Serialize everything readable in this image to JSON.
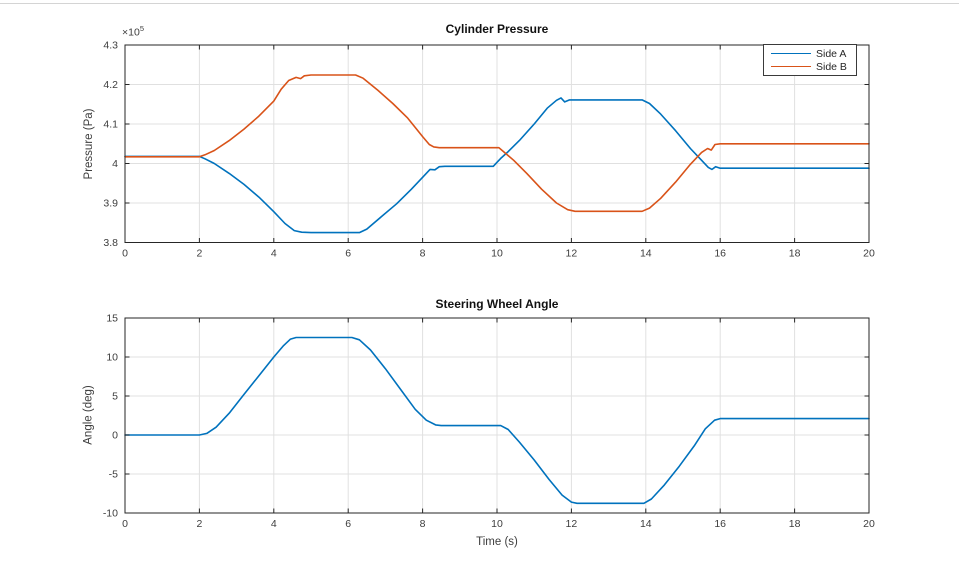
{
  "window": {
    "background": "#ffffff",
    "top_border_color": "#d4d4d4"
  },
  "styles": {
    "axis_color": "#262626",
    "grid_color": "#e0e0e0",
    "tick_label_color": "#3d3d3d",
    "title_color": "#111111"
  },
  "chart_data": [
    {
      "type": "line",
      "title": "Cylinder Pressure",
      "ylabel": "Pressure (Pa)",
      "y_multiplier": {
        "base": "×10",
        "exp": "5"
      },
      "xlim": [
        0,
        20
      ],
      "ylim": [
        3.8,
        4.3
      ],
      "grid": true,
      "legend": {
        "position": "northeast",
        "entries": [
          {
            "label": "Side A",
            "color": "#0072BD"
          },
          {
            "label": "Side B",
            "color": "#D95319"
          }
        ]
      },
      "xticks": [
        0,
        2,
        4,
        6,
        8,
        10,
        12,
        14,
        16,
        18,
        20
      ],
      "xtick_labels": [
        "0",
        "2",
        "4",
        "6",
        "8",
        "10",
        "12",
        "14",
        "16",
        "18",
        "20"
      ],
      "yticks": [
        3.8,
        3.9,
        4,
        4.1,
        4.2,
        4.3
      ],
      "ytick_labels": [
        "3.8",
        "3.9",
        "4",
        "4.1",
        "4.2",
        "4.3"
      ],
      "series": [
        {
          "name": "Side A",
          "color": "#0072BD",
          "points": [
            [
              0,
              4.018
            ],
            [
              2.0,
              4.018
            ],
            [
              2.15,
              4.012
            ],
            [
              2.4,
              4.0
            ],
            [
              2.8,
              3.975
            ],
            [
              3.2,
              3.947
            ],
            [
              3.6,
              3.915
            ],
            [
              4.0,
              3.878
            ],
            [
              4.3,
              3.848
            ],
            [
              4.55,
              3.83
            ],
            [
              4.75,
              3.826
            ],
            [
              5.0,
              3.825
            ],
            [
              6.3,
              3.825
            ],
            [
              6.5,
              3.834
            ],
            [
              6.9,
              3.866
            ],
            [
              7.3,
              3.898
            ],
            [
              7.7,
              3.935
            ],
            [
              8.05,
              3.97
            ],
            [
              8.2,
              3.985
            ],
            [
              8.33,
              3.984
            ],
            [
              8.45,
              3.992
            ],
            [
              8.6,
              3.993
            ],
            [
              9.9,
              3.993
            ],
            [
              10.0,
              4.003
            ],
            [
              10.1,
              4.013
            ],
            [
              10.3,
              4.03
            ],
            [
              10.6,
              4.058
            ],
            [
              11.0,
              4.1
            ],
            [
              11.35,
              4.14
            ],
            [
              11.6,
              4.16
            ],
            [
              11.72,
              4.166
            ],
            [
              11.82,
              4.156
            ],
            [
              11.95,
              4.161
            ],
            [
              13.9,
              4.161
            ],
            [
              14.1,
              4.152
            ],
            [
              14.4,
              4.125
            ],
            [
              14.8,
              4.083
            ],
            [
              15.2,
              4.038
            ],
            [
              15.5,
              4.008
            ],
            [
              15.68,
              3.99
            ],
            [
              15.78,
              3.985
            ],
            [
              15.88,
              3.992
            ],
            [
              16.0,
              3.988
            ],
            [
              20,
              3.988
            ]
          ]
        },
        {
          "name": "Side B",
          "color": "#D95319",
          "points": [
            [
              0,
              4.017
            ],
            [
              2.0,
              4.017
            ],
            [
              2.15,
              4.022
            ],
            [
              2.4,
              4.033
            ],
            [
              2.8,
              4.058
            ],
            [
              3.2,
              4.087
            ],
            [
              3.6,
              4.12
            ],
            [
              4.0,
              4.158
            ],
            [
              4.2,
              4.188
            ],
            [
              4.4,
              4.21
            ],
            [
              4.6,
              4.218
            ],
            [
              4.72,
              4.215
            ],
            [
              4.82,
              4.222
            ],
            [
              5.0,
              4.224
            ],
            [
              6.2,
              4.224
            ],
            [
              6.4,
              4.216
            ],
            [
              6.8,
              4.185
            ],
            [
              7.2,
              4.152
            ],
            [
              7.6,
              4.115
            ],
            [
              8.0,
              4.068
            ],
            [
              8.18,
              4.048
            ],
            [
              8.3,
              4.042
            ],
            [
              8.45,
              4.04
            ],
            [
              10.05,
              4.04
            ],
            [
              10.2,
              4.028
            ],
            [
              10.45,
              4.008
            ],
            [
              10.8,
              3.975
            ],
            [
              11.2,
              3.935
            ],
            [
              11.6,
              3.9
            ],
            [
              11.9,
              3.883
            ],
            [
              12.1,
              3.879
            ],
            [
              13.9,
              3.879
            ],
            [
              14.1,
              3.887
            ],
            [
              14.4,
              3.912
            ],
            [
              14.8,
              3.953
            ],
            [
              15.2,
              3.998
            ],
            [
              15.5,
              4.028
            ],
            [
              15.66,
              4.038
            ],
            [
              15.76,
              4.034
            ],
            [
              15.86,
              4.048
            ],
            [
              16.0,
              4.05
            ],
            [
              20,
              4.05
            ]
          ]
        }
      ]
    },
    {
      "type": "line",
      "title": "Steering Wheel Angle",
      "xlabel": "Time (s)",
      "ylabel": "Angle (deg)",
      "xlim": [
        0,
        20
      ],
      "ylim": [
        -10,
        15
      ],
      "grid": true,
      "xticks": [
        0,
        2,
        4,
        6,
        8,
        10,
        12,
        14,
        16,
        18,
        20
      ],
      "xtick_labels": [
        "0",
        "2",
        "4",
        "6",
        "8",
        "10",
        "12",
        "14",
        "16",
        "18",
        "20"
      ],
      "yticks": [
        -10,
        -5,
        0,
        5,
        10,
        15
      ],
      "ytick_labels": [
        "-10",
        "-5",
        "0",
        "5",
        "10",
        "15"
      ],
      "series": [
        {
          "name": "Angle",
          "color": "#0072BD",
          "points": [
            [
              0,
              0
            ],
            [
              2,
              0
            ],
            [
              2.2,
              0.2
            ],
            [
              2.45,
              1.0
            ],
            [
              2.8,
              2.8
            ],
            [
              3.2,
              5.2
            ],
            [
              3.6,
              7.6
            ],
            [
              4.0,
              10.0
            ],
            [
              4.25,
              11.4
            ],
            [
              4.45,
              12.3
            ],
            [
              4.6,
              12.5
            ],
            [
              6.1,
              12.5
            ],
            [
              6.3,
              12.2
            ],
            [
              6.6,
              10.9
            ],
            [
              7.0,
              8.5
            ],
            [
              7.4,
              5.9
            ],
            [
              7.8,
              3.3
            ],
            [
              8.1,
              1.9
            ],
            [
              8.35,
              1.3
            ],
            [
              8.5,
              1.2
            ],
            [
              10.1,
              1.2
            ],
            [
              10.3,
              0.7
            ],
            [
              10.6,
              -0.9
            ],
            [
              11.0,
              -3.2
            ],
            [
              11.4,
              -5.7
            ],
            [
              11.75,
              -7.7
            ],
            [
              12.0,
              -8.6
            ],
            [
              12.15,
              -8.75
            ],
            [
              13.95,
              -8.75
            ],
            [
              14.15,
              -8.2
            ],
            [
              14.5,
              -6.4
            ],
            [
              14.9,
              -4.0
            ],
            [
              15.3,
              -1.4
            ],
            [
              15.6,
              0.8
            ],
            [
              15.85,
              1.9
            ],
            [
              16.0,
              2.1
            ],
            [
              20,
              2.1
            ]
          ]
        }
      ]
    }
  ]
}
